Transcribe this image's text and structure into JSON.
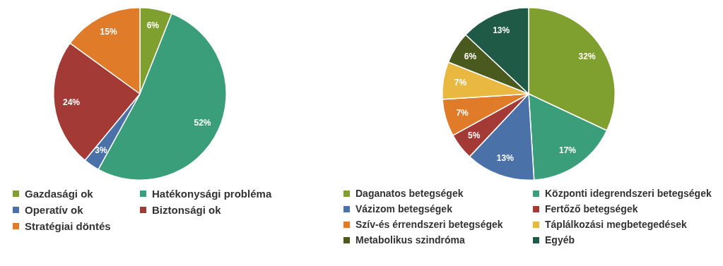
{
  "chart_data": [
    {
      "type": "pie",
      "categories": [
        "Gazdasági ok",
        "Hatékonysági probléma",
        "Operatív ok",
        "Biztonsági ok",
        "Stratégiai döntés"
      ],
      "values": [
        6,
        52,
        3,
        24,
        15
      ],
      "value_labels": [
        "6%",
        "52%",
        "3%",
        "24%",
        "15%"
      ],
      "colors": [
        "#7f9f2e",
        "#3a9e7a",
        "#4a72a8",
        "#a33a36",
        "#e07b2a"
      ],
      "legend": "bottom"
    },
    {
      "type": "pie",
      "categories": [
        "Daganatos betegségek",
        "Központi idegrendszeri betegségek",
        "Vázizom betegségek",
        "Fertőző betegségek",
        "Szív-és érrendszeri betegségek",
        "Táplálkozási megbetegedések",
        "Metabolikus szindróma",
        "Egyéb"
      ],
      "values": [
        32,
        17,
        13,
        5,
        7,
        7,
        6,
        13
      ],
      "value_labels": [
        "32%",
        "17%",
        "13%",
        "5%",
        "7%",
        "7%",
        "6%",
        "13%"
      ],
      "colors": [
        "#7f9f2e",
        "#3a9e7a",
        "#4a72a8",
        "#a33a36",
        "#e07b2a",
        "#e8b840",
        "#4a5a1e",
        "#1e5a46"
      ],
      "legend": "bottom"
    }
  ]
}
